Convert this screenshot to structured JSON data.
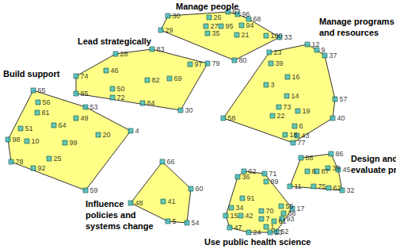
{
  "chart_data": {
    "type": "scatter",
    "xlim": [
      0,
      500
    ],
    "ylim": [
      0,
      314
    ],
    "tick_labels": false,
    "grid": false,
    "color": "#3cbcbc",
    "marker": "square",
    "clusters": [
      {
        "name": "Manage people",
        "color": "#ffff88",
        "points": [
          {
            "label": "30",
            "x": 212,
            "y": 20
          },
          {
            "label": "29",
            "x": 203,
            "y": 38
          },
          {
            "label": "26",
            "x": 264,
            "y": 22
          },
          {
            "label": "67",
            "x": 288,
            "y": 15
          },
          {
            "label": "96",
            "x": 300,
            "y": 18
          },
          {
            "label": "68",
            "x": 314,
            "y": 24
          },
          {
            "label": "27",
            "x": 260,
            "y": 33
          },
          {
            "label": "95",
            "x": 279,
            "y": 33
          },
          {
            "label": "94",
            "x": 305,
            "y": 32
          },
          {
            "label": "35",
            "x": 262,
            "y": 42
          },
          {
            "label": "21",
            "x": 299,
            "y": 44
          },
          {
            "label": "100",
            "x": 336,
            "y": 45
          },
          {
            "label": "33",
            "x": 353,
            "y": 47
          },
          {
            "label": "80",
            "x": 296,
            "y": 76
          }
        ]
      },
      {
        "name": "Manage programs\nand resources",
        "color": "#ffff88",
        "points": [
          {
            "label": "12",
            "x": 388,
            "y": 56
          },
          {
            "label": "9",
            "x": 400,
            "y": 63
          },
          {
            "label": "37",
            "x": 410,
            "y": 70
          },
          {
            "label": "23",
            "x": 340,
            "y": 66
          },
          {
            "label": "39",
            "x": 342,
            "y": 80
          },
          {
            "label": "16",
            "x": 363,
            "y": 97
          },
          {
            "label": "3",
            "x": 336,
            "y": 107
          },
          {
            "label": "14",
            "x": 362,
            "y": 121
          },
          {
            "label": "57",
            "x": 423,
            "y": 125
          },
          {
            "label": "73",
            "x": 352,
            "y": 135
          },
          {
            "label": "19",
            "x": 376,
            "y": 140
          },
          {
            "label": "22",
            "x": 344,
            "y": 146
          },
          {
            "label": "40",
            "x": 420,
            "y": 149
          },
          {
            "label": "6",
            "x": 372,
            "y": 159
          },
          {
            "label": "58",
            "x": 282,
            "y": 149
          },
          {
            "label": "18",
            "x": 360,
            "y": 170
          },
          {
            "label": "43",
            "x": 375,
            "y": 171
          },
          {
            "label": "77",
            "x": 370,
            "y": 180
          }
        ]
      },
      {
        "name": "Lead strategically",
        "color": "#ffff88",
        "points": [
          {
            "label": "28",
            "x": 146,
            "y": 68
          },
          {
            "label": "83",
            "x": 192,
            "y": 62
          },
          {
            "label": "74",
            "x": 96,
            "y": 96
          },
          {
            "label": "46",
            "x": 134,
            "y": 89
          },
          {
            "label": "97",
            "x": 240,
            "y": 81
          },
          {
            "label": "79",
            "x": 262,
            "y": 80
          },
          {
            "label": "82",
            "x": 186,
            "y": 101
          },
          {
            "label": "69",
            "x": 214,
            "y": 99
          },
          {
            "label": "50",
            "x": 142,
            "y": 112
          },
          {
            "label": "72",
            "x": 142,
            "y": 123
          },
          {
            "label": "85",
            "x": 96,
            "y": 118
          },
          {
            "label": "84",
            "x": 180,
            "y": 130
          },
          {
            "label": "30",
            "x": 228,
            "y": 139
          }
        ]
      },
      {
        "name": "Build support",
        "color": "#ffff88",
        "points": [
          {
            "label": "65",
            "x": 42,
            "y": 114
          },
          {
            "label": "56",
            "x": 48,
            "y": 129
          },
          {
            "label": "81",
            "x": 47,
            "y": 142
          },
          {
            "label": "53",
            "x": 108,
            "y": 135
          },
          {
            "label": "49",
            "x": 96,
            "y": 149
          },
          {
            "label": "64",
            "x": 68,
            "y": 158
          },
          {
            "label": "51",
            "x": 26,
            "y": 162
          },
          {
            "label": "98",
            "x": 10,
            "y": 176
          },
          {
            "label": "10",
            "x": 34,
            "y": 178
          },
          {
            "label": "99",
            "x": 82,
            "y": 180
          },
          {
            "label": "20",
            "x": 124,
            "y": 170
          },
          {
            "label": "4",
            "x": 165,
            "y": 165
          },
          {
            "label": "25",
            "x": 62,
            "y": 200
          },
          {
            "label": "78",
            "x": 14,
            "y": 204
          },
          {
            "label": "92",
            "x": 42,
            "y": 212
          },
          {
            "label": "59",
            "x": 108,
            "y": 240
          }
        ]
      },
      {
        "name": "Design and\nevaluate programs",
        "color": "#ffff88",
        "points": [
          {
            "label": "86",
            "x": 418,
            "y": 194
          },
          {
            "label": "88",
            "x": 380,
            "y": 199
          },
          {
            "label": "8",
            "x": 388,
            "y": 216
          },
          {
            "label": "87",
            "x": 400,
            "y": 216
          },
          {
            "label": "39",
            "x": 414,
            "y": 212
          },
          {
            "label": "45",
            "x": 427,
            "y": 214
          },
          {
            "label": "11",
            "x": 366,
            "y": 235
          },
          {
            "label": "75",
            "x": 396,
            "y": 235
          },
          {
            "label": "62",
            "x": 415,
            "y": 237
          },
          {
            "label": "32",
            "x": 432,
            "y": 240
          }
        ]
      },
      {
        "name": "Influence\npolicies and\nsystems change",
        "color": "#ffff88",
        "points": [
          {
            "label": "66",
            "x": 205,
            "y": 204
          },
          {
            "label": "60",
            "x": 241,
            "y": 238
          },
          {
            "label": "48",
            "x": 165,
            "y": 256
          },
          {
            "label": "41",
            "x": 206,
            "y": 254
          },
          {
            "label": "5",
            "x": 212,
            "y": 279
          },
          {
            "label": "54",
            "x": 236,
            "y": 281
          }
        ]
      },
      {
        "name": "Use public health science",
        "color": "#ffff88",
        "points": [
          {
            "label": "36",
            "x": 300,
            "y": 223
          },
          {
            "label": "62",
            "x": 308,
            "y": 216
          },
          {
            "label": "71",
            "x": 334,
            "y": 219
          },
          {
            "label": "89",
            "x": 336,
            "y": 229
          },
          {
            "label": "91",
            "x": 306,
            "y": 250
          },
          {
            "label": "34",
            "x": 292,
            "y": 262
          },
          {
            "label": "70",
            "x": 330,
            "y": 266
          },
          {
            "label": "55",
            "x": 355,
            "y": 260
          },
          {
            "label": "17",
            "x": 369,
            "y": 263
          },
          {
            "label": "15",
            "x": 285,
            "y": 272
          },
          {
            "label": "42",
            "x": 304,
            "y": 272
          },
          {
            "label": "7",
            "x": 330,
            "y": 276
          },
          {
            "label": "38",
            "x": 358,
            "y": 269
          },
          {
            "label": "61",
            "x": 346,
            "y": 279
          },
          {
            "label": "93",
            "x": 356,
            "y": 276
          },
          {
            "label": "47",
            "x": 290,
            "y": 287
          },
          {
            "label": "1",
            "x": 336,
            "y": 286
          },
          {
            "label": "13",
            "x": 341,
            "y": 293
          },
          {
            "label": "52",
            "x": 349,
            "y": 292
          },
          {
            "label": "24",
            "x": 314,
            "y": 293
          }
        ]
      }
    ]
  }
}
